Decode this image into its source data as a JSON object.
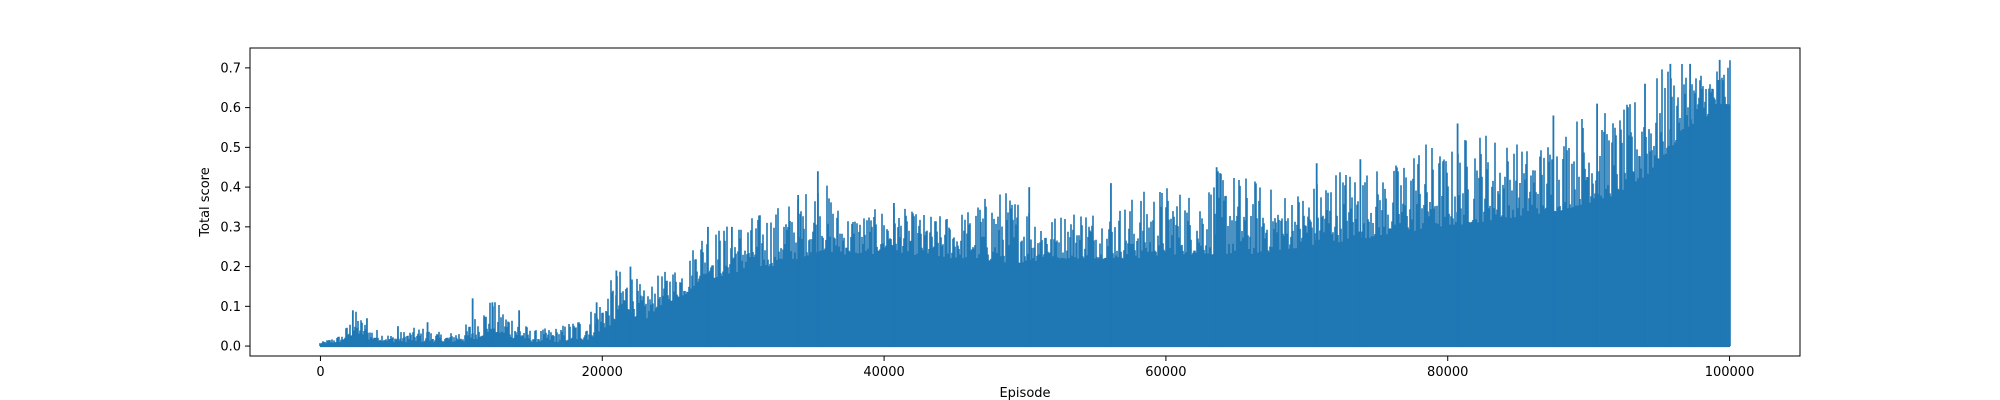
{
  "chart_data": {
    "type": "line",
    "title": "",
    "xlabel": "Episode",
    "ylabel": "Total score",
    "xlim": [
      -5000,
      105000
    ],
    "ylim": [
      -0.025,
      0.75
    ],
    "xticks": [
      0,
      20000,
      40000,
      60000,
      80000,
      100000
    ],
    "xtick_labels": [
      "0",
      "20000",
      "40000",
      "60000",
      "80000",
      "100000"
    ],
    "yticks": [
      0.0,
      0.1,
      0.2,
      0.3,
      0.4,
      0.5,
      0.6,
      0.7
    ],
    "ytick_labels": [
      "0.0",
      "0.1",
      "0.2",
      "0.3",
      "0.4",
      "0.5",
      "0.6",
      "0.7"
    ],
    "grid": false,
    "legend": "none",
    "series": [
      {
        "color": "#1f77b4",
        "x_range": [
          0,
          100000
        ],
        "floor": 0.0,
        "envelope_x": [
          0,
          1500,
          2500,
          3500,
          5000,
          7000,
          9000,
          10500,
          12000,
          13500,
          15000,
          17000,
          19000,
          20000,
          21000,
          22000,
          23000,
          24000,
          26000,
          27000,
          28000,
          30000,
          32000,
          34000,
          35500,
          37000,
          39000,
          40500,
          42000,
          44000,
          46000,
          48000,
          50000,
          52000,
          54000,
          56000,
          58000,
          60000,
          62000,
          64000,
          66000,
          68000,
          70000,
          72000,
          74000,
          76000,
          78000,
          80000,
          82000,
          84000,
          86000,
          88000,
          90000,
          92000,
          94000,
          95500,
          97000,
          98500,
          100000
        ],
        "envelope_lo": [
          0.005,
          0.01,
          0.03,
          0.015,
          0.01,
          0.01,
          0.01,
          0.01,
          0.03,
          0.02,
          0.01,
          0.01,
          0.015,
          0.04,
          0.06,
          0.08,
          0.06,
          0.1,
          0.13,
          0.17,
          0.17,
          0.19,
          0.2,
          0.22,
          0.24,
          0.23,
          0.23,
          0.24,
          0.23,
          0.22,
          0.22,
          0.21,
          0.21,
          0.22,
          0.22,
          0.22,
          0.22,
          0.23,
          0.23,
          0.23,
          0.23,
          0.24,
          0.25,
          0.26,
          0.27,
          0.28,
          0.29,
          0.3,
          0.31,
          0.32,
          0.33,
          0.34,
          0.36,
          0.38,
          0.42,
          0.48,
          0.55,
          0.58,
          0.6
        ],
        "envelope_hi": [
          0.01,
          0.03,
          0.09,
          0.05,
          0.03,
          0.05,
          0.03,
          0.06,
          0.12,
          0.09,
          0.04,
          0.05,
          0.09,
          0.13,
          0.19,
          0.2,
          0.14,
          0.18,
          0.22,
          0.3,
          0.3,
          0.32,
          0.35,
          0.38,
          0.44,
          0.34,
          0.34,
          0.36,
          0.34,
          0.33,
          0.35,
          0.4,
          0.38,
          0.33,
          0.36,
          0.34,
          0.39,
          0.41,
          0.39,
          0.45,
          0.43,
          0.39,
          0.4,
          0.46,
          0.45,
          0.45,
          0.53,
          0.49,
          0.56,
          0.53,
          0.5,
          0.55,
          0.61,
          0.58,
          0.66,
          0.71,
          0.71,
          0.7,
          0.72
        ],
        "peaks": [
          {
            "x": 2300,
            "y": 0.09
          },
          {
            "x": 3300,
            "y": 0.07
          },
          {
            "x": 5500,
            "y": 0.05
          },
          {
            "x": 7600,
            "y": 0.06
          },
          {
            "x": 10800,
            "y": 0.12
          },
          {
            "x": 12200,
            "y": 0.11
          },
          {
            "x": 14100,
            "y": 0.09
          },
          {
            "x": 19600,
            "y": 0.11
          },
          {
            "x": 21000,
            "y": 0.19
          },
          {
            "x": 22000,
            "y": 0.2
          },
          {
            "x": 27500,
            "y": 0.3
          },
          {
            "x": 29200,
            "y": 0.3
          },
          {
            "x": 33900,
            "y": 0.38
          },
          {
            "x": 35300,
            "y": 0.44
          },
          {
            "x": 40700,
            "y": 0.36
          },
          {
            "x": 50300,
            "y": 0.4
          },
          {
            "x": 56100,
            "y": 0.41
          },
          {
            "x": 63600,
            "y": 0.45
          },
          {
            "x": 70700,
            "y": 0.46
          },
          {
            "x": 73800,
            "y": 0.47
          },
          {
            "x": 80700,
            "y": 0.56
          },
          {
            "x": 87500,
            "y": 0.58
          },
          {
            "x": 90600,
            "y": 0.61
          },
          {
            "x": 94000,
            "y": 0.66
          },
          {
            "x": 95800,
            "y": 0.71
          },
          {
            "x": 97200,
            "y": 0.71
          },
          {
            "x": 99300,
            "y": 0.72
          }
        ]
      }
    ]
  }
}
